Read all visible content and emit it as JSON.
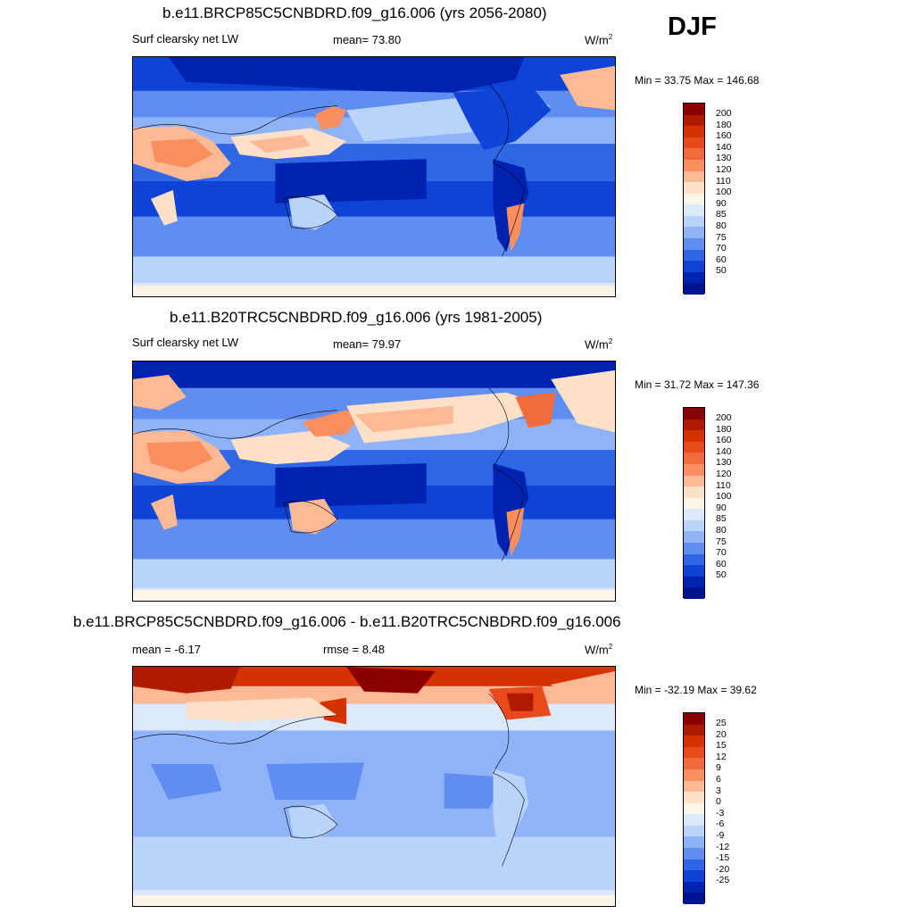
{
  "season": "DJF",
  "panels": [
    {
      "title": "b.e11.BRCP85C5CNBDRD.f09_g16.006 (yrs 2056-2080)",
      "left_label": "Surf clearsky net LW",
      "center_label": "mean=  73.80",
      "units": "W/m",
      "units_exp": "2",
      "minmax": "Min =  33.75 Max = 146.68",
      "colorbar": {
        "labels": [
          "200",
          "180",
          "160",
          "140",
          "130",
          "120",
          "110",
          "100",
          "90",
          "85",
          "80",
          "75",
          "70",
          "60",
          "50"
        ],
        "colors": [
          "#8b0000",
          "#b01a00",
          "#d63100",
          "#e84a1c",
          "#f26b3c",
          "#f98e5f",
          "#fdb895",
          "#fde0c8",
          "#fdf4e8",
          "#dce9fb",
          "#b9d3fb",
          "#8fb3f8",
          "#5f8ef0",
          "#2e66e6",
          "#0d43d6",
          "#0022b0",
          "#001490"
        ]
      },
      "map_kind": "future"
    },
    {
      "title": "b.e11.B20TRC5CNBDRD.f09_g16.006 (yrs 1981-2005)",
      "left_label": "Surf clearsky net LW",
      "center_label": "mean=  79.97",
      "units": "W/m",
      "units_exp": "2",
      "minmax": "Min =  31.72 Max = 147.36",
      "colorbar": {
        "labels": [
          "200",
          "180",
          "160",
          "140",
          "130",
          "120",
          "110",
          "100",
          "90",
          "85",
          "80",
          "75",
          "70",
          "60",
          "50"
        ],
        "colors": [
          "#8b0000",
          "#b01a00",
          "#d63100",
          "#e84a1c",
          "#f26b3c",
          "#f98e5f",
          "#fdb895",
          "#fde0c8",
          "#fdf4e8",
          "#dce9fb",
          "#b9d3fb",
          "#8fb3f8",
          "#5f8ef0",
          "#2e66e6",
          "#0d43d6",
          "#0022b0",
          "#001490"
        ]
      },
      "map_kind": "historical"
    },
    {
      "title": "b.e11.BRCP85C5CNBDRD.f09_g16.006 - b.e11.B20TRC5CNBDRD.f09_g16.006",
      "left_label": "mean =  -6.17",
      "center_label": "rmse =    8.48",
      "units": "W/m",
      "units_exp": "2",
      "minmax": "Min = -32.19 Max =  39.62",
      "colorbar": {
        "labels": [
          "25",
          "20",
          "15",
          "12",
          "9",
          "6",
          "3",
          "0",
          "-3",
          "-6",
          "-9",
          "-12",
          "-15",
          "-20",
          "-25"
        ],
        "colors": [
          "#8b0000",
          "#b01a00",
          "#d63100",
          "#e84a1c",
          "#f26b3c",
          "#f98e5f",
          "#fdb895",
          "#fde0c8",
          "#fdf4e8",
          "#dce9fb",
          "#b9d3fb",
          "#8fb3f8",
          "#5f8ef0",
          "#2e66e6",
          "#0d43d6",
          "#0022b0",
          "#001490"
        ]
      },
      "map_kind": "difference"
    }
  ]
}
